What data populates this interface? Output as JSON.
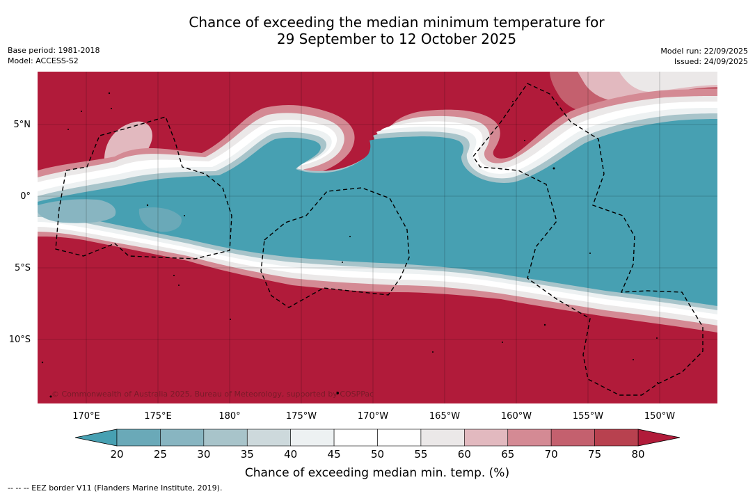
{
  "title_line1": "Chance of exceeding the median minimum temperature for",
  "title_line2": "29 September to 12 October 2025",
  "meta_left": {
    "base_period": "Base period: 1981-2018",
    "model": "Model: ACCESS-S2"
  },
  "meta_right": {
    "model_run": "Model run: 22/09/2025",
    "issued": "Issued: 24/09/2025"
  },
  "lat_labels": [
    "5°N",
    "0°",
    "5°S",
    "10°S"
  ],
  "lon_labels": [
    "170°E",
    "175°E",
    "180°",
    "175°W",
    "170°W",
    "165°W",
    "160°W",
    "155°W",
    "150°W"
  ],
  "copyright": "© Commonwealth of Australia 2025, Bureau of Meteorology, supported by COSPPac",
  "colorbar": {
    "title": "Chance of exceeding median min. temp. (%)",
    "ticks": [
      "20",
      "25",
      "30",
      "35",
      "40",
      "45",
      "50",
      "55",
      "60",
      "65",
      "70",
      "75",
      "80"
    ],
    "colors": [
      "#47a0b2",
      "#6aa9b8",
      "#88b5c1",
      "#a8c4ca",
      "#cdd9dc",
      "#edf1f2",
      "#ffffff",
      "#ffffff",
      "#ebe8e8",
      "#e2b9bf",
      "#d48a94",
      "#c4606e",
      "#b8414f",
      "#b11b3a"
    ],
    "low_end_color": "#47a0b2",
    "high_end_color": "#b11b3a"
  },
  "footer": "--  --  -- EEZ border V11 (Flanders Marine Institute, 2019)."
}
